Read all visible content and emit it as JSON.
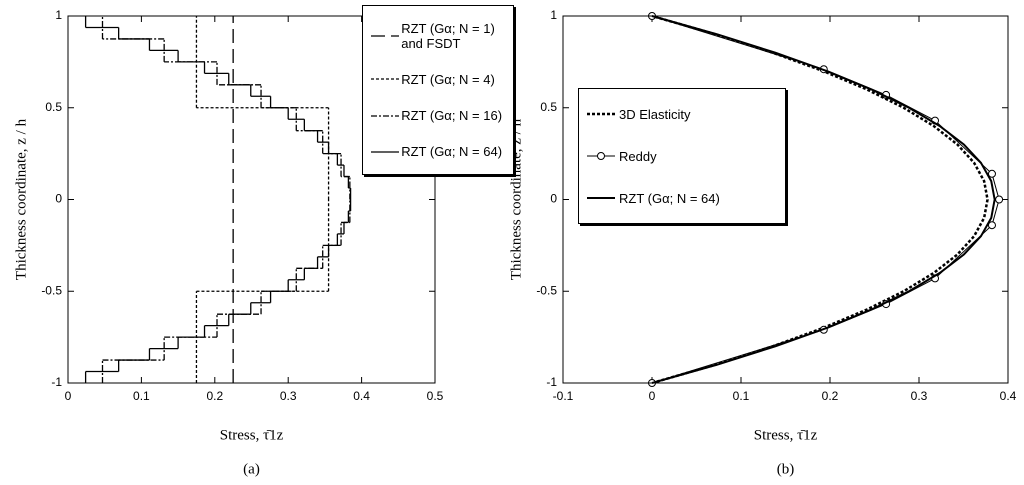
{
  "chart_data": [
    {
      "type": "step",
      "x_label": "Stress, τ̄1z",
      "y_label": "Thickness coordinate, z / h",
      "caption": "(a)",
      "xlim": [
        0,
        0.5
      ],
      "xticks": [
        0,
        0.1,
        0.2,
        0.3,
        0.4,
        0.5
      ],
      "ylim": [
        -1,
        1
      ],
      "yticks": [
        -1,
        -0.5,
        0,
        0.5,
        1
      ],
      "series": [
        {
          "name": "RZT (Gα; N = 1) and FSDT",
          "color": "#000000",
          "dash": "14 6",
          "layer_edges": [
            -1,
            1
          ],
          "values": [
            0.225
          ]
        },
        {
          "name": "RZT (Gα; N = 4)",
          "color": "#000000",
          "dash": "3 2",
          "layer_edges": [
            -1,
            -0.5,
            0,
            0.5,
            1
          ],
          "values": [
            0.175,
            0.355,
            0.355,
            0.175
          ]
        },
        {
          "name": "RZT (Gα; N = 16)",
          "color": "#000000",
          "dash": "6 2 2 2",
          "layer_edges": [
            -1,
            -0.875,
            -0.75,
            -0.625,
            -0.5,
            -0.375,
            -0.25,
            -0.125,
            0,
            0.125,
            0.25,
            0.375,
            0.5,
            0.625,
            0.75,
            0.875,
            1
          ],
          "values": [
            0.047,
            0.131,
            0.203,
            0.263,
            0.311,
            0.347,
            0.372,
            0.384,
            0.384,
            0.372,
            0.347,
            0.311,
            0.263,
            0.203,
            0.131,
            0.047
          ]
        },
        {
          "name": "RZT (Gα; N = 64)",
          "color": "#000000",
          "dash": "none",
          "layer_edges": [
            -1,
            -0.9375,
            -0.875,
            -0.8125,
            -0.75,
            -0.6875,
            -0.625,
            -0.5625,
            -0.5,
            -0.4375,
            -0.375,
            -0.3125,
            -0.25,
            -0.1875,
            -0.125,
            -0.0625,
            0,
            0.0625,
            0.125,
            0.1875,
            0.25,
            0.3125,
            0.375,
            0.4375,
            0.5,
            0.5625,
            0.625,
            0.6875,
            0.75,
            0.8125,
            0.875,
            0.9375,
            1
          ],
          "values": [
            0.024,
            0.069,
            0.111,
            0.15,
            0.186,
            0.219,
            0.249,
            0.276,
            0.3,
            0.322,
            0.34,
            0.355,
            0.367,
            0.376,
            0.382,
            0.385,
            0.385,
            0.382,
            0.376,
            0.367,
            0.355,
            0.34,
            0.322,
            0.3,
            0.276,
            0.249,
            0.219,
            0.186,
            0.15,
            0.111,
            0.069,
            0.024
          ]
        }
      ]
    },
    {
      "type": "line",
      "x_label": "Stress, τ̄1z",
      "y_label": "Thickness coordinate, z / h",
      "caption": "(b)",
      "xlim": [
        -0.1,
        0.4
      ],
      "xticks": [
        -0.1,
        0,
        0.1,
        0.2,
        0.3,
        0.4
      ],
      "ylim": [
        -1,
        1
      ],
      "yticks": [
        -1,
        -0.5,
        0,
        0.5,
        1
      ],
      "series": [
        {
          "name": "3D Elasticity",
          "color": "#000000",
          "dash": "3 2",
          "width": 2.5,
          "markers": false,
          "z": [
            -1,
            -0.9,
            -0.8,
            -0.7,
            -0.6,
            -0.5,
            -0.4,
            -0.3,
            -0.2,
            -0.1,
            0,
            0.1,
            0.2,
            0.3,
            0.4,
            0.5,
            0.6,
            0.7,
            0.8,
            0.9,
            1
          ],
          "values": [
            0,
            0.0716,
            0.1357,
            0.1923,
            0.2413,
            0.2828,
            0.3167,
            0.3431,
            0.3619,
            0.3732,
            0.377,
            0.3732,
            0.3619,
            0.3431,
            0.3167,
            0.2828,
            0.2413,
            0.1923,
            0.1357,
            0.0716,
            0
          ]
        },
        {
          "name": "Reddy",
          "color": "#000000",
          "dash": "none",
          "width": 1,
          "markers": true,
          "z": [
            -1,
            -0.71,
            -0.57,
            -0.43,
            -0.14,
            0,
            0.14,
            0.43,
            0.57,
            0.71,
            1
          ],
          "values": [
            0,
            0.193,
            0.263,
            0.318,
            0.382,
            0.39,
            0.382,
            0.318,
            0.263,
            0.193,
            0
          ]
        },
        {
          "name": "RZT (Gα; N = 64)",
          "color": "#000000",
          "dash": "none",
          "width": 2,
          "markers": false,
          "z": [
            -1,
            -0.9,
            -0.8,
            -0.7,
            -0.6,
            -0.5,
            -0.4,
            -0.3,
            -0.2,
            -0.1,
            0,
            0.1,
            0.2,
            0.3,
            0.4,
            0.5,
            0.6,
            0.7,
            0.8,
            0.9,
            1
          ],
          "values": [
            0,
            0.0732,
            0.1386,
            0.1964,
            0.2464,
            0.2888,
            0.3234,
            0.3504,
            0.3696,
            0.3812,
            0.385,
            0.3812,
            0.3696,
            0.3504,
            0.3234,
            0.2888,
            0.2464,
            0.1964,
            0.1386,
            0.0732,
            0
          ]
        }
      ]
    }
  ]
}
